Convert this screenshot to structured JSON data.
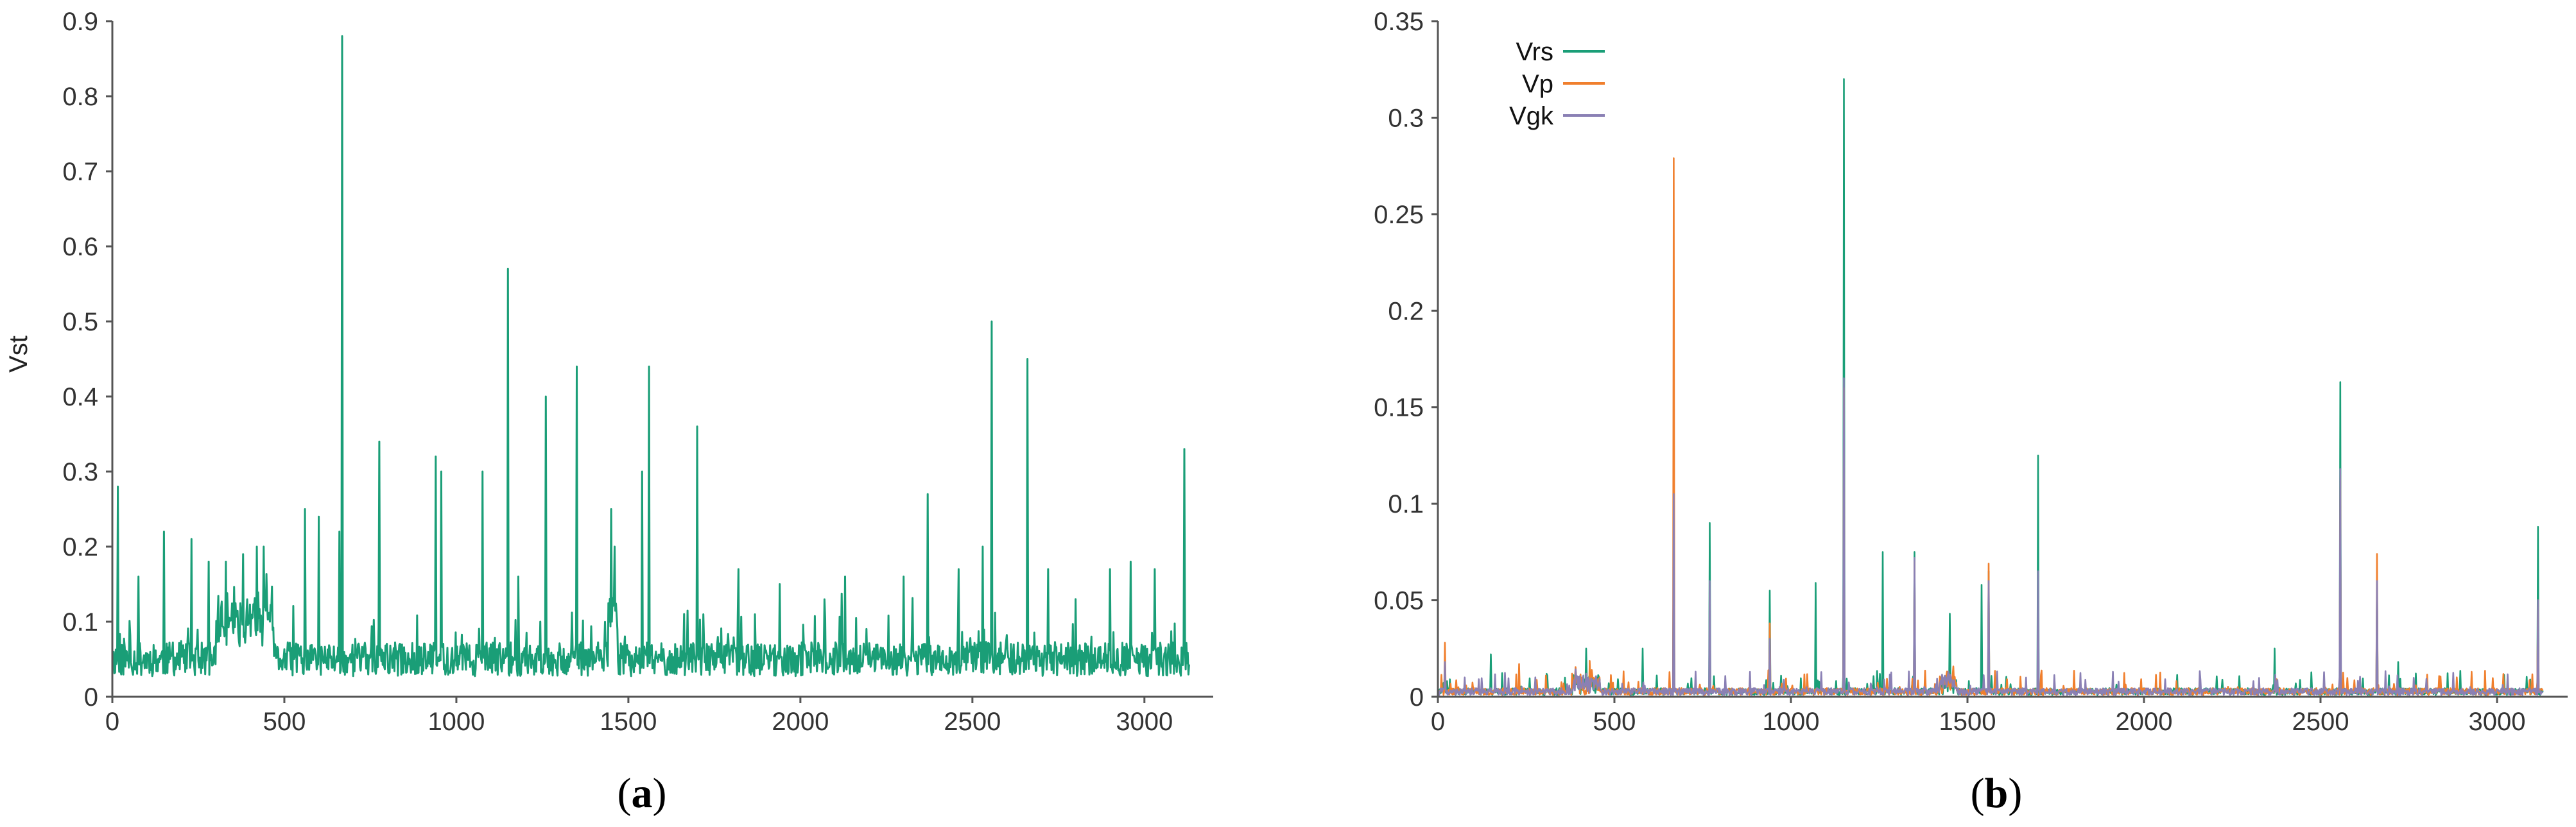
{
  "panels": [
    {
      "caption_open": "(",
      "caption_letter": "a",
      "caption_close": ")",
      "legend": []
    },
    {
      "caption_open": "(",
      "caption_letter": "b",
      "caption_close": ")",
      "legend": [
        "Vrs",
        "Vp",
        "Vgk"
      ]
    }
  ],
  "chart_data": [
    {
      "type": "line",
      "title": "",
      "xlabel": "",
      "ylabel": "Vst",
      "xlim": [
        0,
        3200
      ],
      "ylim": [
        0,
        0.9
      ],
      "xticks": [
        0,
        500,
        1000,
        1500,
        2000,
        2500,
        3000
      ],
      "yticks": [
        0,
        0.1,
        0.2,
        0.3,
        0.4,
        0.5,
        0.6,
        0.7,
        0.8,
        0.9
      ],
      "grid": false,
      "series": [
        {
          "color": "#1a9e77",
          "baseline": 0.05,
          "spikes": [
            [
              15,
              0.28
            ],
            [
              75,
              0.16
            ],
            [
              150,
              0.22
            ],
            [
              230,
              0.21
            ],
            [
              280,
              0.18
            ],
            [
              330,
              0.18
            ],
            [
              380,
              0.19
            ],
            [
              420,
              0.2
            ],
            [
              440,
              0.2
            ],
            [
              560,
              0.25
            ],
            [
              600,
              0.24
            ],
            [
              660,
              0.22
            ],
            [
              668,
              0.88
            ],
            [
              775,
              0.34
            ],
            [
              940,
              0.32
            ],
            [
              955,
              0.3
            ],
            [
              1075,
              0.3
            ],
            [
              1150,
              0.57
            ],
            [
              1180,
              0.16
            ],
            [
              1260,
              0.4
            ],
            [
              1350,
              0.44
            ],
            [
              1450,
              0.25
            ],
            [
              1460,
              0.2
            ],
            [
              1540,
              0.3
            ],
            [
              1560,
              0.44
            ],
            [
              1700,
              0.36
            ],
            [
              1820,
              0.17
            ],
            [
              1940,
              0.15
            ],
            [
              2130,
              0.16
            ],
            [
              2300,
              0.16
            ],
            [
              2370,
              0.27
            ],
            [
              2460,
              0.17
            ],
            [
              2530,
              0.2
            ],
            [
              2555,
              0.5
            ],
            [
              2660,
              0.45
            ],
            [
              2720,
              0.17
            ],
            [
              2800,
              0.13
            ],
            [
              2900,
              0.17
            ],
            [
              2960,
              0.18
            ],
            [
              3030,
              0.17
            ],
            [
              3115,
              0.33
            ]
          ]
        }
      ]
    },
    {
      "type": "line",
      "title": "",
      "xlabel": "",
      "ylabel": "",
      "xlim": [
        0,
        3200
      ],
      "ylim": [
        0,
        0.35
      ],
      "xticks": [
        0,
        500,
        1000,
        1500,
        2000,
        2500,
        3000
      ],
      "yticks": [
        0,
        0.05,
        0.1,
        0.15,
        0.2,
        0.25,
        0.3,
        0.35
      ],
      "grid": false,
      "legend_position": "top-left",
      "series": [
        {
          "name": "Vrs",
          "color": "#1a9e77",
          "baseline": 0.003,
          "spikes": [
            [
              20,
              0.02
            ],
            [
              150,
              0.022
            ],
            [
              420,
              0.025
            ],
            [
              580,
              0.025
            ],
            [
              668,
              0.1
            ],
            [
              770,
              0.09
            ],
            [
              940,
              0.055
            ],
            [
              1070,
              0.059
            ],
            [
              1150,
              0.32
            ],
            [
              1260,
              0.075
            ],
            [
              1350,
              0.075
            ],
            [
              1450,
              0.043
            ],
            [
              1540,
              0.058
            ],
            [
              1560,
              0.065
            ],
            [
              1700,
              0.125
            ],
            [
              2370,
              0.025
            ],
            [
              2555,
              0.163
            ],
            [
              2660,
              0.06
            ],
            [
              2720,
              0.018
            ],
            [
              3115,
              0.088
            ]
          ]
        },
        {
          "name": "Vp",
          "color": "#f07f2d",
          "baseline": 0.003,
          "spikes": [
            [
              20,
              0.028
            ],
            [
              230,
              0.017
            ],
            [
              380,
              0.012
            ],
            [
              668,
              0.279
            ],
            [
              940,
              0.038
            ],
            [
              1150,
              0.16
            ],
            [
              1350,
              0.07
            ],
            [
              1560,
              0.069
            ],
            [
              2555,
              0.115
            ],
            [
              2660,
              0.074
            ],
            [
              3115,
              0.05
            ]
          ]
        },
        {
          "name": "Vgk",
          "color": "#8a80b4",
          "baseline": 0.003,
          "spikes": [
            [
              20,
              0.018
            ],
            [
              420,
              0.012
            ],
            [
              668,
              0.105
            ],
            [
              770,
              0.06
            ],
            [
              940,
              0.03
            ],
            [
              1150,
              0.165
            ],
            [
              1350,
              0.072
            ],
            [
              1560,
              0.06
            ],
            [
              1700,
              0.065
            ],
            [
              2555,
              0.118
            ],
            [
              2660,
              0.06
            ],
            [
              3115,
              0.05
            ]
          ]
        }
      ]
    }
  ]
}
